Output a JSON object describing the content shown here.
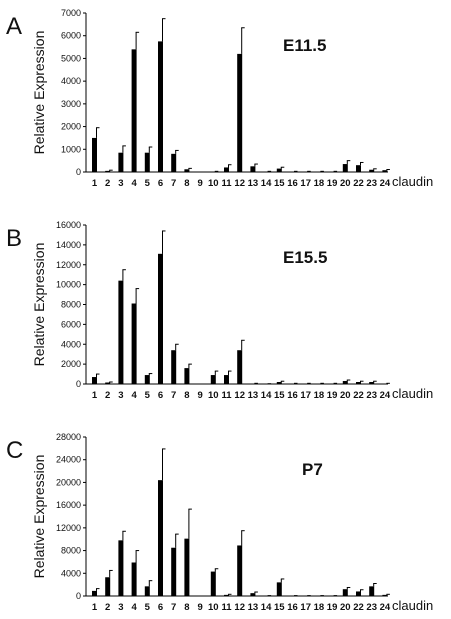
{
  "chart_data": [
    {
      "type": "bar",
      "panel": "A",
      "title": "E11.5",
      "ylabel": "Relative Expression",
      "xlabel": "claudin",
      "ylim": [
        0,
        7000
      ],
      "yticks": [
        0,
        1000,
        2000,
        3000,
        4000,
        5000,
        6000,
        7000
      ],
      "categories": [
        "1",
        "2",
        "3",
        "4",
        "5",
        "6",
        "7",
        "8",
        "9",
        "10",
        "11",
        "12",
        "13",
        "14",
        "15",
        "16",
        "17",
        "18",
        "19",
        "20",
        "22",
        "23",
        "24"
      ],
      "values": [
        1500,
        50,
        850,
        5400,
        850,
        5750,
        800,
        120,
        0,
        20,
        200,
        5200,
        250,
        20,
        150,
        20,
        20,
        20,
        20,
        350,
        300,
        100,
        80
      ],
      "errors": [
        450,
        30,
        300,
        750,
        250,
        1000,
        150,
        40,
        0,
        10,
        120,
        1150,
        100,
        10,
        60,
        10,
        10,
        10,
        10,
        150,
        120,
        40,
        30
      ]
    },
    {
      "type": "bar",
      "panel": "B",
      "title": "E15.5",
      "ylabel": "Relative Expression",
      "xlabel": "claudin",
      "ylim": [
        0,
        16000
      ],
      "yticks": [
        0,
        2000,
        4000,
        6000,
        8000,
        10000,
        12000,
        14000,
        16000
      ],
      "categories": [
        "1",
        "2",
        "3",
        "4",
        "5",
        "6",
        "7",
        "8",
        "9",
        "10",
        "11",
        "12",
        "13",
        "14",
        "15",
        "16",
        "17",
        "18",
        "19",
        "20",
        "22",
        "23",
        "24"
      ],
      "values": [
        700,
        150,
        10400,
        8100,
        900,
        13100,
        3400,
        1600,
        0,
        900,
        900,
        3400,
        50,
        20,
        200,
        50,
        50,
        50,
        50,
        300,
        200,
        200,
        50
      ],
      "errors": [
        300,
        50,
        1100,
        1500,
        150,
        2300,
        600,
        400,
        0,
        400,
        400,
        1000,
        20,
        10,
        80,
        20,
        20,
        20,
        20,
        100,
        80,
        80,
        20
      ]
    },
    {
      "type": "bar",
      "panel": "C",
      "title": "P7",
      "ylabel": "Relative Expression",
      "xlabel": "claudin",
      "ylim": [
        0,
        28000
      ],
      "yticks": [
        0,
        4000,
        8000,
        12000,
        16000,
        20000,
        24000,
        28000
      ],
      "categories": [
        "1",
        "2",
        "3",
        "4",
        "5",
        "6",
        "7",
        "8",
        "9",
        "10",
        "11",
        "12",
        "13",
        "14",
        "15",
        "16",
        "17",
        "18",
        "19",
        "20",
        "22",
        "23",
        "24"
      ],
      "values": [
        900,
        3300,
        9800,
        5900,
        1700,
        20400,
        8500,
        10100,
        0,
        4300,
        200,
        8900,
        500,
        50,
        2400,
        50,
        50,
        50,
        50,
        1200,
        800,
        1700,
        200
      ],
      "errors": [
        400,
        1200,
        1600,
        2100,
        1000,
        5500,
        2400,
        5200,
        0,
        500,
        100,
        2600,
        200,
        20,
        600,
        20,
        20,
        20,
        20,
        300,
        300,
        500,
        100
      ]
    }
  ]
}
